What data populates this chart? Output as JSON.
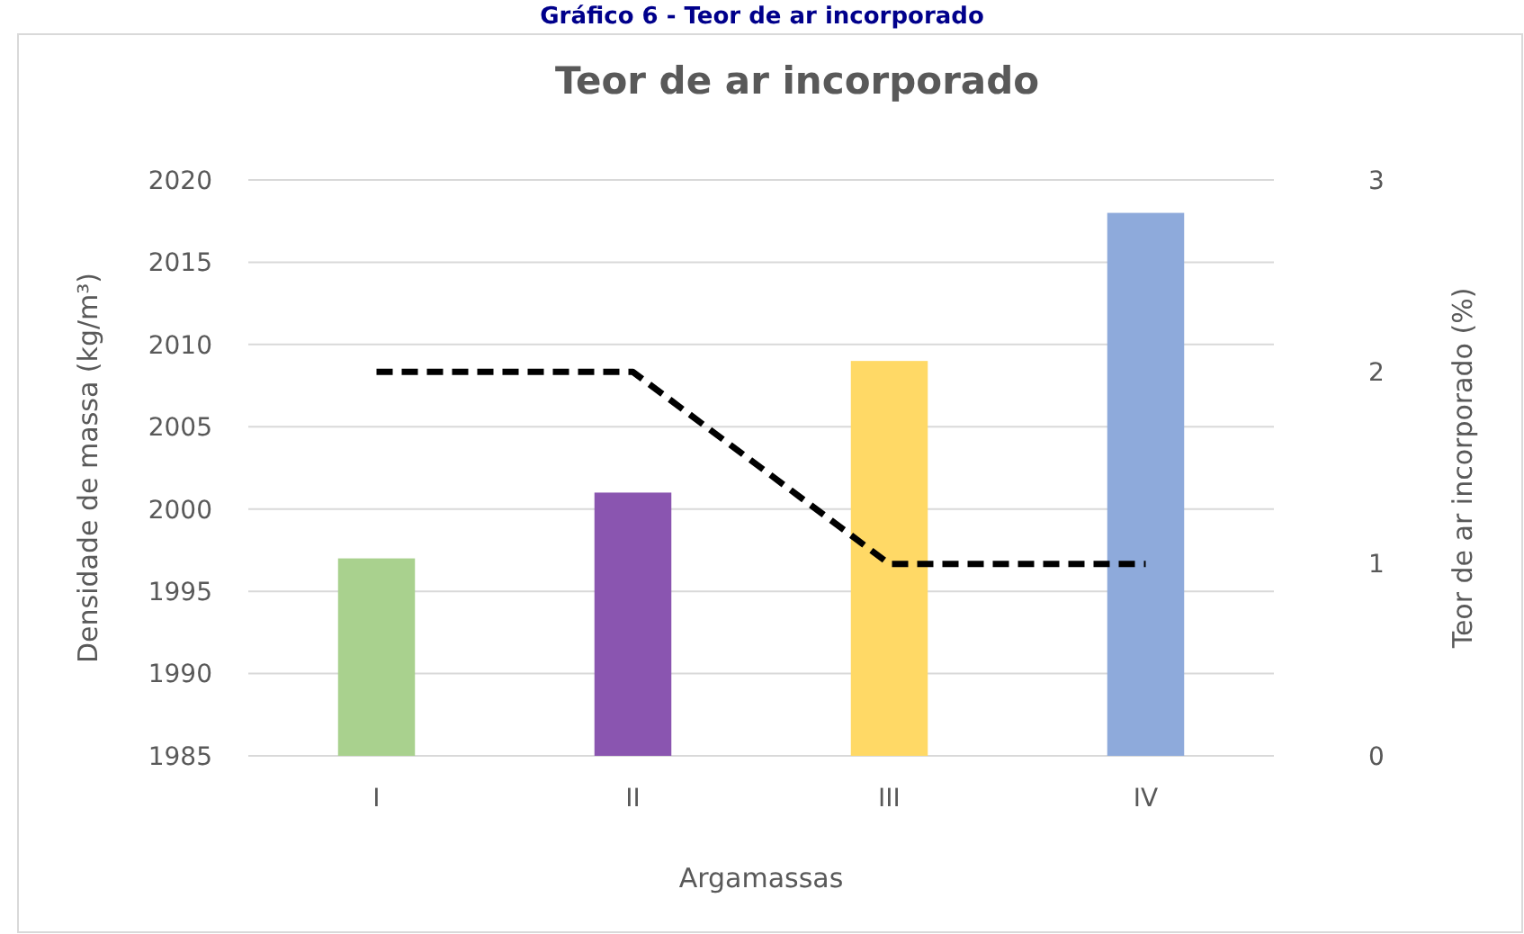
{
  "chart_data": {
    "type": "bar",
    "title": "Teor de ar incorporado",
    "annotations": [
      "Gráfico 6 - Teor de ar incorporado"
    ],
    "xlabel": "Argamassas",
    "ylabel": "Densidade de massa (kg/m³)",
    "y2label": "Teor de ar incorporado (%)",
    "categories": [
      "I",
      "II",
      "III",
      "IV"
    ],
    "series": [
      {
        "colors": [
          "#a9d18e",
          "#8a55b0",
          "#ffd966",
          "#8eaadb"
        ],
        "values": [
          1997,
          2001,
          2009,
          2018
        ]
      },
      {
        "type": "line",
        "axis": "y2",
        "color": "#000000",
        "line_style": "dashed",
        "values": [
          2,
          2,
          1,
          1
        ]
      }
    ],
    "ylim": [
      1985,
      2020
    ],
    "yticks": [
      1985,
      1990,
      1995,
      2000,
      2005,
      2010,
      2015,
      2020
    ],
    "y2lim": [
      0,
      3
    ],
    "y2ticks": [
      0,
      1,
      2,
      3
    ],
    "grid": "y"
  }
}
